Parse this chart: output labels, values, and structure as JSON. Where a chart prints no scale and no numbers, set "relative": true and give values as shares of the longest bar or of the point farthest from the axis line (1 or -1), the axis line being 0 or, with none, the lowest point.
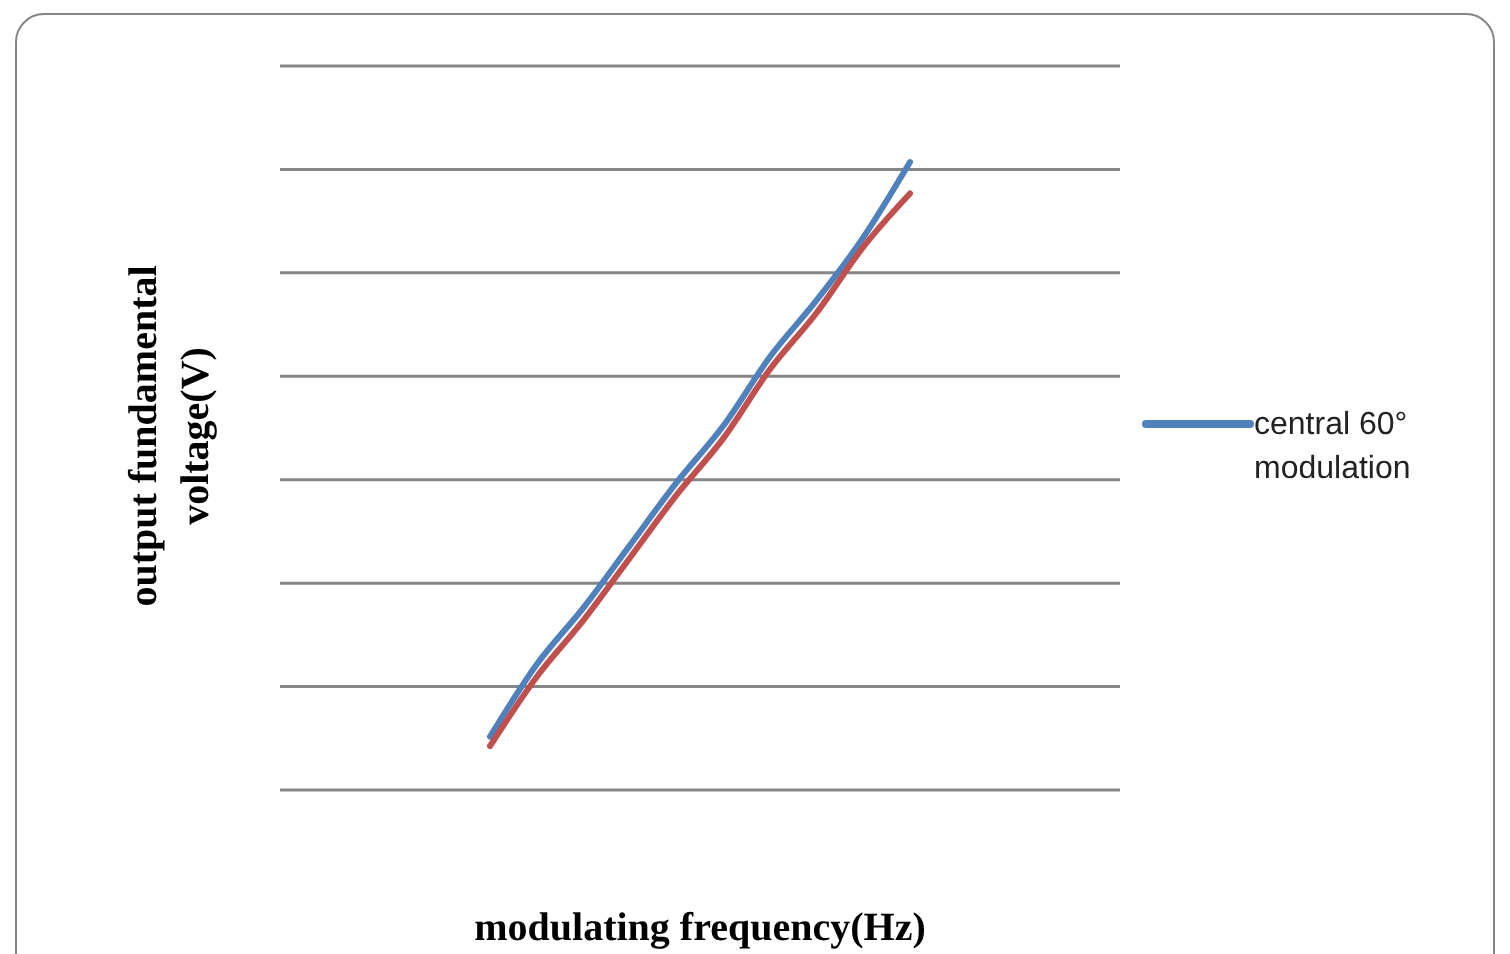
{
  "chart_data": {
    "type": "line",
    "xlabel": "modulating frequency(Hz)",
    "ylabel": "output fundamental voltage(V)",
    "relative": true,
    "grid": "y",
    "legend": "right",
    "marker": "none",
    "line_style": "solid",
    "categories": [
      null,
      null,
      null,
      null,
      null,
      null,
      null,
      null,
      null,
      null,
      null,
      null,
      null,
      null,
      null,
      null,
      null,
      null
    ],
    "series": [
      {
        "name": "central 60° modulation",
        "color": "#4f81bd",
        "values": [
          null,
          null,
          null,
          null,
          0.085,
          0.2,
          0.29,
          0.39,
          0.49,
          0.58,
          0.69,
          0.78,
          0.88,
          1,
          null,
          null,
          null,
          null
        ]
      },
      {
        "color": "#c0504d",
        "values": [
          null,
          null,
          null,
          null,
          0.07,
          0.18,
          0.27,
          0.37,
          0.47,
          0.56,
          0.67,
          0.76,
          0.865,
          0.95,
          null,
          null,
          null,
          null
        ]
      }
    ]
  }
}
